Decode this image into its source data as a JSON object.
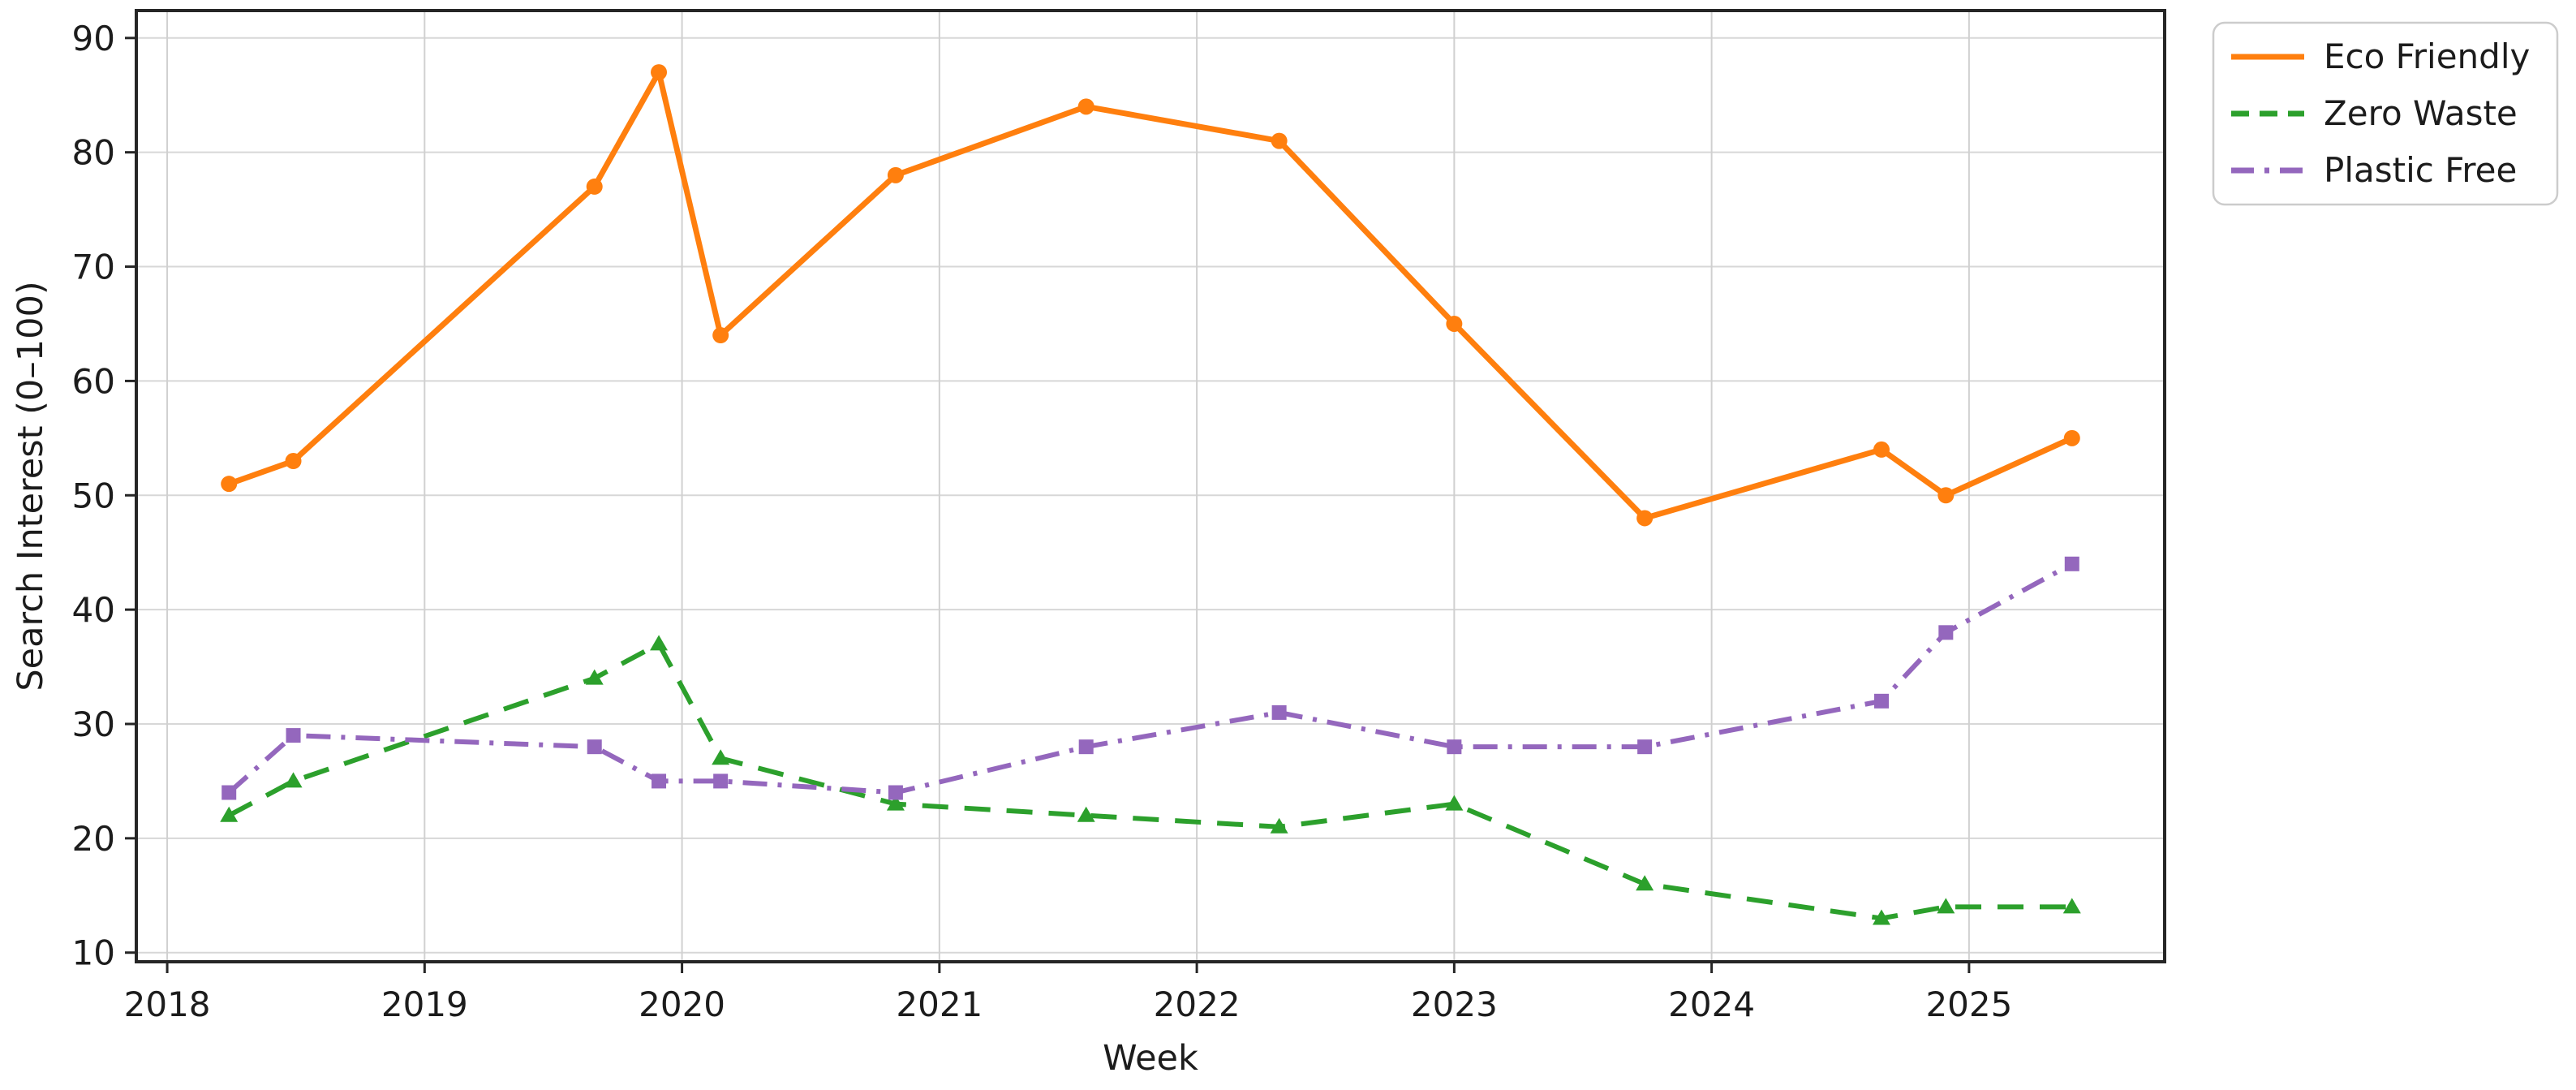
{
  "chart_data": {
    "type": "line",
    "title": "",
    "xlabel": "Week",
    "ylabel": "Search Interest (0–100)",
    "grid": true,
    "x_axis": {
      "ticks": [
        2018,
        2019,
        2020,
        2021,
        2022,
        2023,
        2024,
        2025
      ],
      "lim": [
        2017.88,
        2025.76
      ]
    },
    "y_axis": {
      "ticks": [
        10,
        20,
        30,
        40,
        50,
        60,
        70,
        80,
        90
      ],
      "lim": [
        9.2,
        92.4
      ]
    },
    "legend": {
      "position": "outside-upper-right",
      "entries": [
        "Eco Friendly",
        "Zero Waste",
        "Plastic Free"
      ]
    },
    "x": [
      2018.24,
      2018.49,
      2019.66,
      2019.91,
      2020.15,
      2020.83,
      2021.57,
      2022.32,
      2023.0,
      2023.74,
      2024.66,
      2024.91,
      2025.4
    ],
    "series": [
      {
        "name": "Eco Friendly",
        "color": "#ff7f0e",
        "line_style": "solid",
        "marker": "circle",
        "values": [
          51,
          53,
          77,
          87,
          64,
          78,
          84,
          81,
          65,
          48,
          54,
          50,
          55
        ]
      },
      {
        "name": "Zero Waste",
        "color": "#2ca02c",
        "line_style": "dashed",
        "marker": "triangle",
        "values": [
          22,
          25,
          34,
          37,
          27,
          23,
          22,
          21,
          23,
          16,
          13,
          14,
          14
        ]
      },
      {
        "name": "Plastic Free",
        "color": "#9467bd",
        "line_style": "dashdot",
        "marker": "square",
        "values": [
          24,
          29,
          28,
          25,
          25,
          24,
          28,
          31,
          28,
          28,
          32,
          38,
          44
        ]
      }
    ]
  }
}
